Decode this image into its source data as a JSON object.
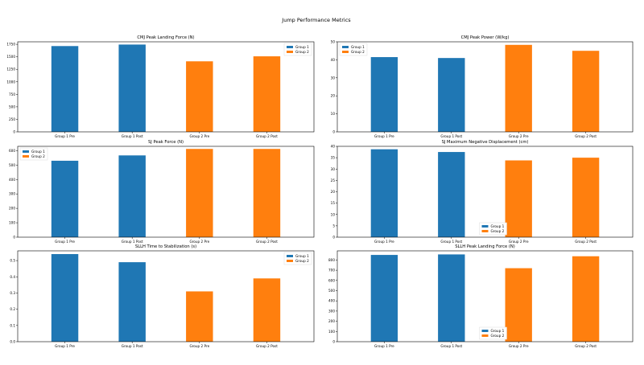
{
  "figure": {
    "title": "Jump Performance Metrics"
  },
  "colors": {
    "group_1": "#1f77b4",
    "group_2": "#ff7f0e"
  },
  "chart_data": [
    {
      "type": "bar",
      "title": "CMJ Peak Landing Force (N)",
      "categories": [
        "Group 1 Pre",
        "Group 1 Post",
        "Group 2 Pre",
        "Group 2 Post"
      ],
      "series": [
        {
          "name": "Group 1",
          "values": [
            1715,
            1745,
            null,
            null
          ]
        },
        {
          "name": "Group 2",
          "values": [
            null,
            null,
            1410,
            1510
          ]
        }
      ],
      "ylim": [
        0,
        1800
      ],
      "yticks": [
        0,
        250,
        500,
        750,
        1000,
        1250,
        1500,
        1750
      ],
      "legend": "top-right"
    },
    {
      "type": "bar",
      "title": "CMJ Peak Power (W/kg)",
      "categories": [
        "Group 1 Pre",
        "Group 1 Post",
        "Group 2 Pre",
        "Group 2 Post"
      ],
      "series": [
        {
          "name": "Group 1",
          "values": [
            41.5,
            41.0,
            null,
            null
          ]
        },
        {
          "name": "Group 2",
          "values": [
            null,
            null,
            48.3,
            45.0
          ]
        }
      ],
      "ylim": [
        0,
        50
      ],
      "yticks": [
        0,
        10,
        20,
        30,
        40,
        50
      ],
      "legend": "top-left"
    },
    {
      "type": "bar",
      "title": "SJ Peak Force (N)",
      "categories": [
        "Group 1 Pre",
        "Group 1 Post",
        "Group 2 Pre",
        "Group 2 Post"
      ],
      "series": [
        {
          "name": "Group 1",
          "values": [
            530,
            567,
            null,
            null
          ]
        },
        {
          "name": "Group 2",
          "values": [
            null,
            null,
            612,
            612
          ]
        }
      ],
      "ylim": [
        0,
        630
      ],
      "yticks": [
        0,
        100,
        200,
        300,
        400,
        500,
        600
      ],
      "legend": "top-left"
    },
    {
      "type": "bar",
      "title": "SJ Maximum Negative Displacement (cm)",
      "categories": [
        "Group 1 Pre",
        "Group 1 Post",
        "Group 2 Pre",
        "Group 2 Post"
      ],
      "series": [
        {
          "name": "Group 1",
          "values": [
            38.7,
            37.5,
            null,
            null
          ]
        },
        {
          "name": "Group 2",
          "values": [
            null,
            null,
            33.8,
            35.0
          ]
        }
      ],
      "ylim": [
        0,
        40
      ],
      "yticks": [
        0,
        5,
        10,
        15,
        20,
        25,
        30,
        35,
        40
      ],
      "legend": "lower-center"
    },
    {
      "type": "bar",
      "title": "SLLH Time to Stabilization (s)",
      "categories": [
        "Group 1 Pre",
        "Group 1 Post",
        "Group 2 Pre",
        "Group 2 Post"
      ],
      "series": [
        {
          "name": "Group 1",
          "values": [
            0.54,
            0.49,
            null,
            null
          ]
        },
        {
          "name": "Group 2",
          "values": [
            null,
            null,
            0.31,
            0.39
          ]
        }
      ],
      "ylim": [
        0,
        0.56
      ],
      "yticks": [
        0.0,
        0.1,
        0.2,
        0.3,
        0.4,
        0.5
      ],
      "legend": "top-right"
    },
    {
      "type": "bar",
      "title": "SLLH Peak Landing Force (N)",
      "categories": [
        "Group 1 Pre",
        "Group 1 Post",
        "Group 2 Pre",
        "Group 2 Post"
      ],
      "series": [
        {
          "name": "Group 1",
          "values": [
            850,
            855,
            null,
            null
          ]
        },
        {
          "name": "Group 2",
          "values": [
            null,
            null,
            720,
            837
          ]
        }
      ],
      "ylim": [
        0,
        890
      ],
      "yticks": [
        0,
        100,
        200,
        300,
        400,
        500,
        600,
        700,
        800
      ],
      "legend": "lower-center"
    }
  ]
}
